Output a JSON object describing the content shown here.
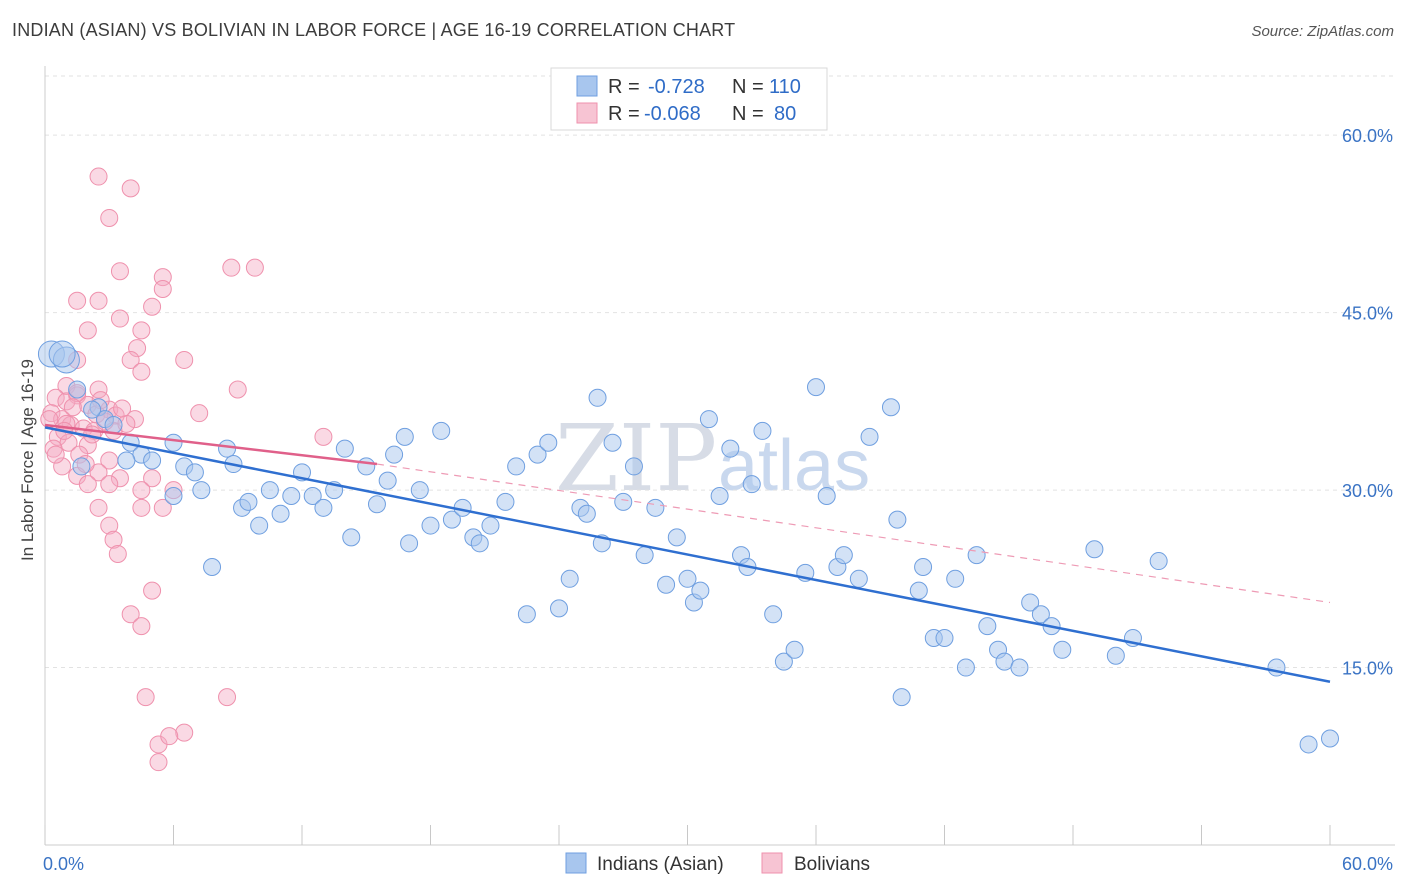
{
  "header": {
    "title": "INDIAN (ASIAN) VS BOLIVIAN IN LABOR FORCE | AGE 16-19 CORRELATION CHART",
    "source": "Source: ZipAtlas.com"
  },
  "watermark": {
    "zip": "ZIP",
    "atlas": "atlas"
  },
  "legend": {
    "rows": [
      {
        "r_label": "R =",
        "r_value": "-0.728",
        "n_label": "N =",
        "n_value": "110",
        "color": "#a8c6ee"
      },
      {
        "r_label": "R =",
        "r_value": "-0.068",
        "n_label": "N =",
        "n_value": "80",
        "color": "#f5b6c8"
      }
    ]
  },
  "bottom_legend": {
    "items": [
      "Indians (Asian)",
      "Bolivians"
    ]
  },
  "chart_data": {
    "type": "scatter",
    "title": "INDIAN (ASIAN) VS BOLIVIAN IN LABOR FORCE | AGE 16-19 CORRELATION CHART",
    "xlabel": "",
    "ylabel": "In Labor Force | Age 16-19",
    "xlim": [
      0,
      60
    ],
    "ylim": [
      0,
      65
    ],
    "x_tick_labels": [
      "0.0%",
      "60.0%"
    ],
    "y_ticks": [
      15,
      30,
      45,
      60
    ],
    "y_tick_labels": [
      "15.0%",
      "30.0%",
      "45.0%",
      "60.0%"
    ],
    "grid": true,
    "legend_position": "top-center",
    "colors": {
      "indians": "#6f9fe0",
      "indians_line": "#2f6fd0",
      "bolivians": "#ef91ad",
      "bolivians_line": "#e0608a"
    },
    "series": [
      {
        "name": "Indians (Asian)",
        "r": -0.728,
        "n": 110,
        "trend": {
          "x": [
            0,
            60
          ],
          "y": [
            35.3,
            13.8
          ]
        },
        "points": [
          [
            0.3,
            41.5
          ],
          [
            1,
            41
          ],
          [
            1.5,
            38.5
          ],
          [
            2.5,
            37
          ],
          [
            2.8,
            36
          ],
          [
            3.2,
            35.5
          ],
          [
            4,
            34
          ],
          [
            4.5,
            33
          ],
          [
            5,
            32.5
          ],
          [
            1.7,
            32
          ],
          [
            3.8,
            32.5
          ],
          [
            6,
            29.5
          ],
          [
            6.5,
            32
          ],
          [
            7,
            31.5
          ],
          [
            7.3,
            30
          ],
          [
            7.8,
            23.5
          ],
          [
            8.5,
            33.5
          ],
          [
            8.8,
            32.2
          ],
          [
            9.2,
            28.5
          ],
          [
            9.5,
            29
          ],
          [
            10,
            27
          ],
          [
            10.5,
            30
          ],
          [
            11,
            28
          ],
          [
            11.5,
            29.5
          ],
          [
            12,
            31.5
          ],
          [
            12.5,
            29.5
          ],
          [
            13,
            28.5
          ],
          [
            13.5,
            30
          ],
          [
            14,
            33.5
          ],
          [
            14.3,
            26
          ],
          [
            15,
            32
          ],
          [
            15.5,
            28.8
          ],
          [
            16,
            30.8
          ],
          [
            16.3,
            33
          ],
          [
            16.8,
            34.5
          ],
          [
            17,
            25.5
          ],
          [
            17.5,
            30
          ],
          [
            18,
            27
          ],
          [
            18.5,
            35
          ],
          [
            19,
            27.5
          ],
          [
            19.5,
            28.5
          ],
          [
            20,
            26
          ],
          [
            20.3,
            25.5
          ],
          [
            20.8,
            27
          ],
          [
            21.5,
            29
          ],
          [
            22,
            32
          ],
          [
            22.5,
            19.5
          ],
          [
            23,
            33
          ],
          [
            23.5,
            34
          ],
          [
            24,
            20
          ],
          [
            24.5,
            22.5
          ],
          [
            25,
            28.5
          ],
          [
            25.3,
            28
          ],
          [
            25.8,
            37.8
          ],
          [
            26,
            25.5
          ],
          [
            26.5,
            34
          ],
          [
            27,
            29
          ],
          [
            27.5,
            32
          ],
          [
            28,
            24.5
          ],
          [
            28.5,
            28.5
          ],
          [
            29,
            22
          ],
          [
            29.5,
            26
          ],
          [
            30,
            22.5
          ],
          [
            30.3,
            20.5
          ],
          [
            30.6,
            21.5
          ],
          [
            31,
            36
          ],
          [
            31.5,
            29.5
          ],
          [
            32,
            33.5
          ],
          [
            32.5,
            24.5
          ],
          [
            32.8,
            23.5
          ],
          [
            33,
            30.5
          ],
          [
            33.5,
            35
          ],
          [
            34,
            19.5
          ],
          [
            34.5,
            15.5
          ],
          [
            35,
            16.5
          ],
          [
            35.5,
            23
          ],
          [
            36,
            38.7
          ],
          [
            36.5,
            29.5
          ],
          [
            37,
            23.5
          ],
          [
            37.3,
            24.5
          ],
          [
            38,
            22.5
          ],
          [
            38.5,
            34.5
          ],
          [
            39.5,
            37
          ],
          [
            39.8,
            27.5
          ],
          [
            40,
            12.5
          ],
          [
            40.8,
            21.5
          ],
          [
            41,
            23.5
          ],
          [
            41.5,
            17.5
          ],
          [
            42,
            17.5
          ],
          [
            42.5,
            22.5
          ],
          [
            43,
            15
          ],
          [
            43.5,
            24.5
          ],
          [
            44,
            18.5
          ],
          [
            44.5,
            16.5
          ],
          [
            44.8,
            15.5
          ],
          [
            45.5,
            15
          ],
          [
            46,
            20.5
          ],
          [
            46.5,
            19.5
          ],
          [
            47,
            18.5
          ],
          [
            47.5,
            16.5
          ],
          [
            49,
            25
          ],
          [
            50,
            16
          ],
          [
            50.8,
            17.5
          ],
          [
            52,
            24
          ],
          [
            57.5,
            15
          ],
          [
            59,
            8.5
          ],
          [
            60,
            9
          ],
          [
            0.8,
            41.5
          ],
          [
            2.2,
            36.8
          ],
          [
            6,
            34
          ]
        ]
      },
      {
        "name": "Bolivians",
        "r": -0.068,
        "n": 80,
        "trend": {
          "x": [
            0,
            15.5
          ],
          "y": [
            35.5,
            32.2
          ]
        },
        "trend_extended": {
          "x": [
            15.5,
            60
          ],
          "y": [
            32.2,
            20.5
          ]
        },
        "points": [
          [
            2.5,
            56.5
          ],
          [
            4,
            55.5
          ],
          [
            3,
            53
          ],
          [
            1.5,
            46
          ],
          [
            3.5,
            48.5
          ],
          [
            5.5,
            48
          ],
          [
            8.7,
            48.8
          ],
          [
            9.8,
            48.8
          ],
          [
            2.5,
            46
          ],
          [
            2,
            43.5
          ],
          [
            3.5,
            44.5
          ],
          [
            5,
            45.5
          ],
          [
            5.5,
            47
          ],
          [
            4.5,
            43.5
          ],
          [
            4.3,
            42
          ],
          [
            1.5,
            41
          ],
          [
            6.5,
            41
          ],
          [
            4,
            41
          ],
          [
            4.5,
            40
          ],
          [
            9,
            38.5
          ],
          [
            1,
            38.8
          ],
          [
            1.5,
            38
          ],
          [
            2.5,
            38.5
          ],
          [
            0.5,
            37.8
          ],
          [
            1,
            37.5
          ],
          [
            2,
            37.2
          ],
          [
            3,
            36.8
          ],
          [
            0.3,
            36.5
          ],
          [
            0.8,
            36
          ],
          [
            1.2,
            35.5
          ],
          [
            1.8,
            35.2
          ],
          [
            2.3,
            35
          ],
          [
            3.2,
            35
          ],
          [
            4.2,
            36
          ],
          [
            0.6,
            34.5
          ],
          [
            1.1,
            34
          ],
          [
            2,
            33.8
          ],
          [
            0.4,
            33.5
          ],
          [
            1.6,
            33
          ],
          [
            3,
            32.5
          ],
          [
            0.8,
            32
          ],
          [
            2.5,
            31.5
          ],
          [
            1.5,
            31.2
          ],
          [
            3.5,
            31
          ],
          [
            5,
            31
          ],
          [
            2,
            30.5
          ],
          [
            3,
            30.5
          ],
          [
            4.5,
            30
          ],
          [
            6,
            30
          ],
          [
            7.2,
            36.5
          ],
          [
            2.5,
            28.5
          ],
          [
            4.5,
            28.5
          ],
          [
            5.5,
            28.5
          ],
          [
            3,
            27
          ],
          [
            3.2,
            25.8
          ],
          [
            3.4,
            24.6
          ],
          [
            1,
            35.6
          ],
          [
            0.2,
            36
          ],
          [
            3.3,
            36.3
          ],
          [
            13,
            34.5
          ],
          [
            5,
            21.5
          ],
          [
            4,
            19.5
          ],
          [
            4.5,
            18.5
          ],
          [
            4.7,
            12.5
          ],
          [
            8.5,
            12.5
          ],
          [
            6.5,
            9.5
          ],
          [
            5.3,
            8.5
          ],
          [
            5.3,
            7
          ],
          [
            5.8,
            9.2
          ],
          [
            1.5,
            38.2
          ],
          [
            2.4,
            36.4
          ],
          [
            3.8,
            35.6
          ],
          [
            0.9,
            35
          ],
          [
            1.3,
            37
          ],
          [
            2.2,
            34.7
          ],
          [
            0.5,
            33
          ],
          [
            1.9,
            32.2
          ],
          [
            2.8,
            35.8
          ],
          [
            3.6,
            36.9
          ],
          [
            2.6,
            37.6
          ]
        ]
      }
    ]
  }
}
